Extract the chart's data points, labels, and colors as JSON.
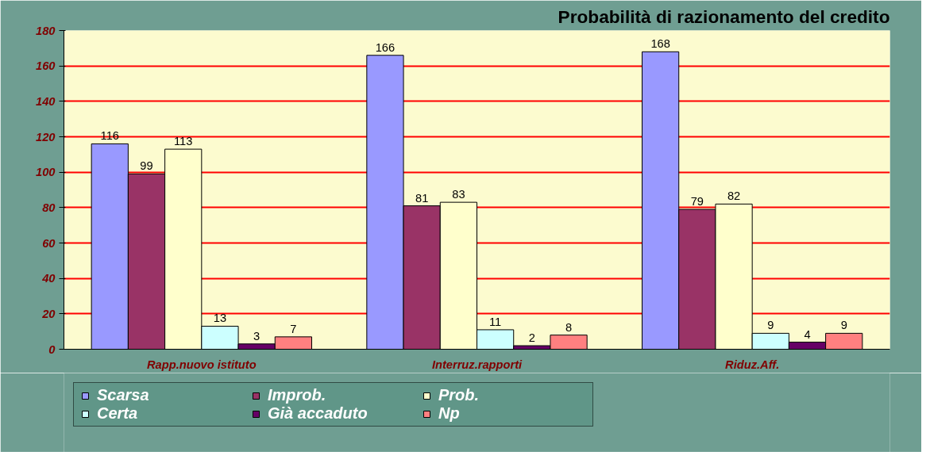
{
  "chart_data": {
    "type": "bar",
    "title": "Probabilità di razionamento del credito",
    "categories": [
      "Rapp.nuovo istituto",
      "Interruz.rapporti",
      "Riduz.Aff."
    ],
    "series": [
      {
        "name": "Scarsa",
        "color": "#9999ff",
        "values": [
          116,
          166,
          168
        ]
      },
      {
        "name": "Improb.",
        "color": "#993366",
        "values": [
          99,
          81,
          79
        ]
      },
      {
        "name": "Prob.",
        "color": "#ffffcc",
        "values": [
          113,
          83,
          82
        ]
      },
      {
        "name": "Certa",
        "color": "#ccffff",
        "values": [
          13,
          11,
          9
        ]
      },
      {
        "name": "Già accaduto",
        "color": "#660066",
        "values": [
          3,
          2,
          4
        ]
      },
      {
        "name": "Np",
        "color": "#ff8080",
        "values": [
          7,
          8,
          9
        ]
      }
    ],
    "ylim": [
      0,
      180
    ],
    "yticks": [
      0,
      20,
      40,
      60,
      80,
      100,
      120,
      140,
      160,
      180
    ],
    "grid": "y",
    "legend": "bottom",
    "data_labels": true
  }
}
